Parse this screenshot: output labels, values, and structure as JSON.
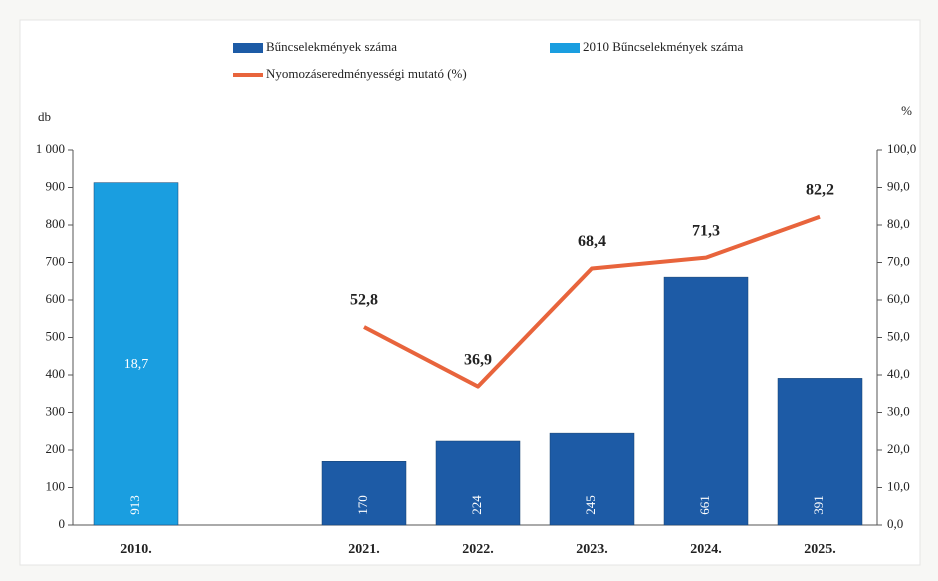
{
  "chart_data": {
    "type": "bar",
    "y_label": "db",
    "y2_label": "%",
    "categories": [
      "2010.",
      null,
      "2021.",
      "2022.",
      "2023.",
      "2024.",
      "2025."
    ],
    "series": [
      {
        "name": "Bűncselekmények száma",
        "color": "#1d5ba6",
        "values": [
          null,
          null,
          170,
          224,
          245,
          661,
          391
        ]
      },
      {
        "name": "2010  Bűncselekmények száma",
        "color": "#1a9ee0",
        "values": [
          913,
          null,
          null,
          null,
          null,
          null,
          null
        ]
      },
      {
        "name": "Nyomozáseredményességi mutató (%)",
        "color": "#e8643c",
        "type": "line",
        "axis": "y2",
        "values": [
          18.7,
          null,
          52.8,
          36.9,
          68.4,
          71.3,
          82.2
        ],
        "value_labels": [
          "18,7",
          null,
          "52,8",
          "36,9",
          "68,4",
          "71,3",
          "82,2"
        ]
      }
    ],
    "ylim": [
      0,
      1000
    ],
    "yticks": [
      0,
      100,
      200,
      300,
      400,
      500,
      600,
      700,
      800,
      900,
      {
        "value": 1000,
        "label": "1 000"
      }
    ],
    "y2lim": [
      0,
      100
    ],
    "y2ticks": [
      {
        "value": 0,
        "label": "0,0"
      },
      {
        "value": 10,
        "label": "10,0"
      },
      {
        "value": 20,
        "label": "20,0"
      },
      {
        "value": 30,
        "label": "30,0"
      },
      {
        "value": 40,
        "label": "40,0"
      },
      {
        "value": 50,
        "label": "50,0"
      },
      {
        "value": 60,
        "label": "60,0"
      },
      {
        "value": 70,
        "label": "70,0"
      },
      {
        "value": 80,
        "label": "80,0"
      },
      {
        "value": 90,
        "label": "90,0"
      },
      {
        "value": 100,
        "label": "100,0"
      }
    ]
  }
}
